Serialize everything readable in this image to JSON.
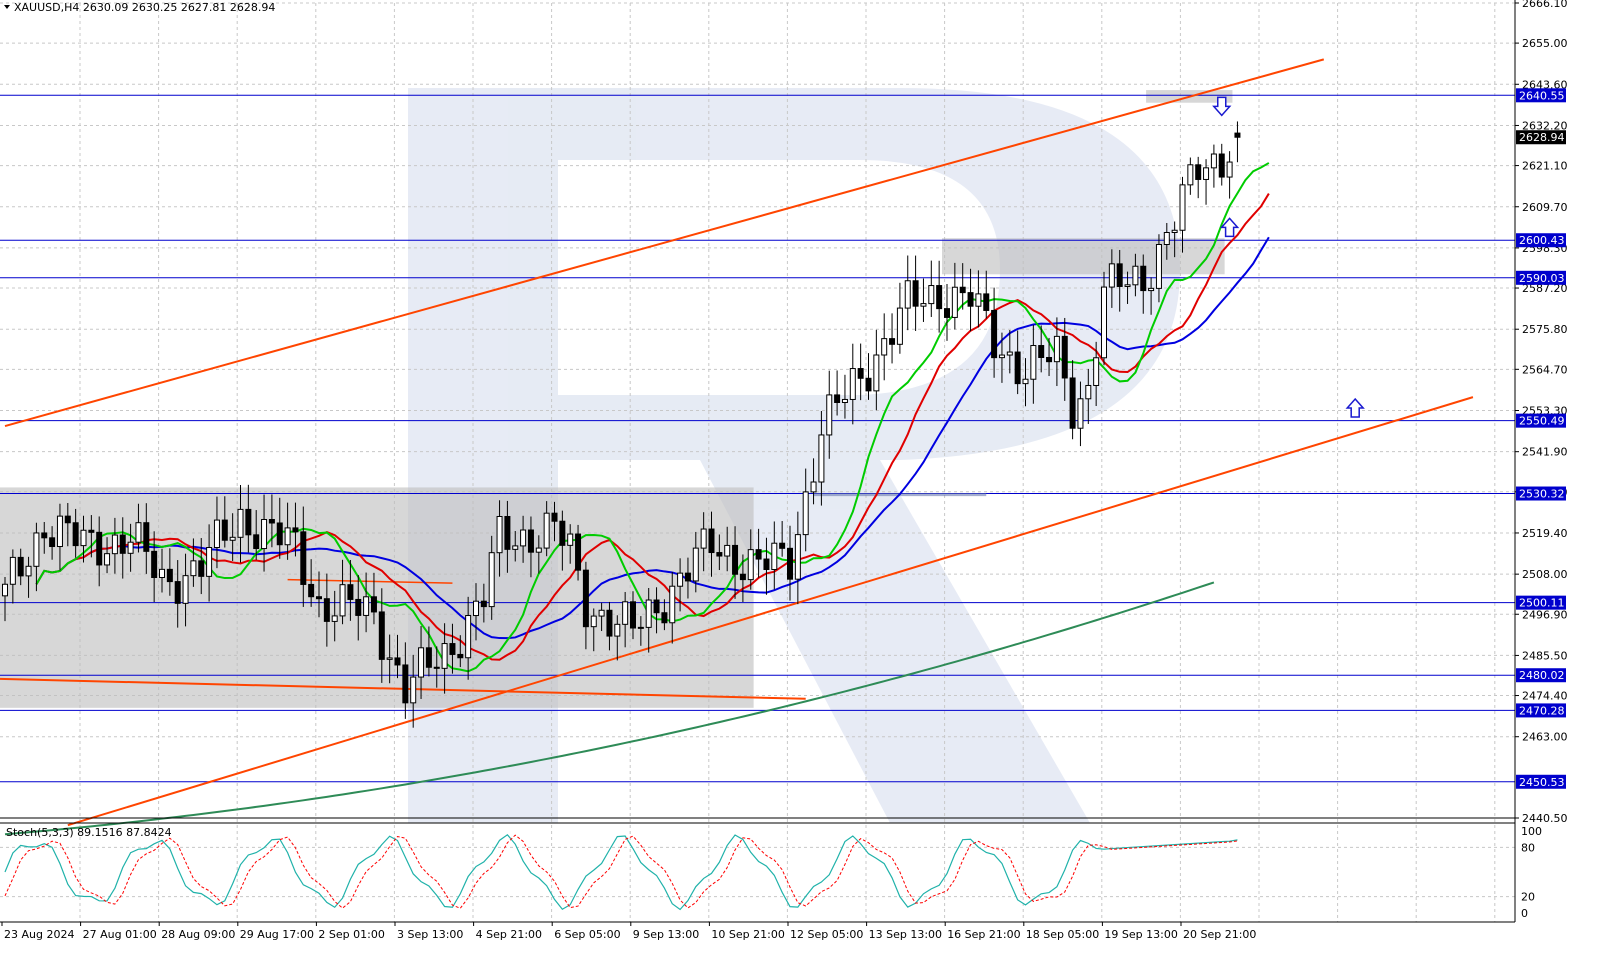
{
  "header": {
    "symbol_line": "XAUUSD,H4  2630.09 2630.25 2627.81 2628.94",
    "stoch_line": "Stoch(5,3,3) 89.1516 87.8424"
  },
  "chart_data": {
    "type": "candlestick",
    "symbol": "XAUUSD",
    "timeframe": "H4",
    "ohlc_last": {
      "open": 2630.09,
      "high": 2630.25,
      "low": 2627.81,
      "close": 2628.94
    },
    "price_axis_ticks": [
      "2666.10",
      "2655.00",
      "2643.60",
      "2632.20",
      "2621.10",
      "2609.70",
      "2598.30",
      "2587.20",
      "2575.80",
      "2564.70",
      "2553.30",
      "2541.90",
      "2530.80",
      "2519.40",
      "2508.00",
      "2496.90",
      "2485.50",
      "2474.40",
      "2463.00",
      "2440.50"
    ],
    "price_ylim": [
      2440.5,
      2666.1
    ],
    "time_axis_labels": [
      "23 Aug 2024",
      "27 Aug 01:00",
      "28 Aug 09:00",
      "29 Aug 17:00",
      "2 Sep 01:00",
      "3 Sep 13:00",
      "4 Sep 21:00",
      "6 Sep 05:00",
      "9 Sep 13:00",
      "10 Sep 21:00",
      "12 Sep 05:00",
      "13 Sep 13:00",
      "16 Sep 21:00",
      "18 Sep 05:00",
      "19 Sep 13:00",
      "20 Sep 21:00"
    ],
    "horizontal_levels": [
      {
        "value": 2640.55,
        "label": "2640.55"
      },
      {
        "value": 2600.43,
        "label": "2600.43"
      },
      {
        "value": 2590.03,
        "label": "2590.03"
      },
      {
        "value": 2550.49,
        "label": "2550.49"
      },
      {
        "value": 2530.32,
        "label": "2530.32"
      },
      {
        "value": 2500.11,
        "label": "2500.11"
      },
      {
        "value": 2480.02,
        "label": "2480.02"
      },
      {
        "value": 2470.28,
        "label": "2470.28"
      },
      {
        "value": 2450.53,
        "label": "2450.53"
      }
    ],
    "current_price_label": "2628.94",
    "channel_lines": [
      {
        "from": {
          "bar": 0,
          "price": 2549.0
        },
        "to": {
          "bar": 168,
          "price": 2650.5
        }
      },
      {
        "from": {
          "bar": 8,
          "price": 2438.5
        },
        "to": {
          "bar": 187,
          "price": 2557.0
        }
      }
    ],
    "zones": [
      {
        "bar_from": 0,
        "bar_to": 96,
        "price_from": 2471.0,
        "price_to": 2532.0
      },
      {
        "bar_from": 120,
        "bar_to": 156,
        "price_from": 2591.0,
        "price_to": 2601.0
      },
      {
        "bar_from": 146,
        "bar_to": 157,
        "price_from": 2638.5,
        "price_to": 2642.0
      }
    ],
    "signal_arrows": [
      {
        "bar": 155,
        "price": 2637.5,
        "direction": "down"
      },
      {
        "bar": 156,
        "price": 2604.0,
        "direction": "up"
      },
      {
        "bar": 172,
        "price": 2554.0,
        "direction": "up"
      }
    ],
    "stochastic": {
      "k": 89.1516,
      "d": 87.8424,
      "levels": [
        "100",
        "80",
        "20",
        "0"
      ]
    },
    "colors": {
      "bull_body": "#ffffff",
      "bear_body": "#000000",
      "ma_fast": "#00cc00",
      "ma_mid": "#e00000",
      "ma_slow": "#0000e0",
      "ma_long": "#2e8b57",
      "channel": "#ff4500",
      "level": "#0000cd",
      "stoch_main": "#20b2aa",
      "stoch_signal": "#ff0000",
      "zone": "#bfbfbf"
    }
  }
}
